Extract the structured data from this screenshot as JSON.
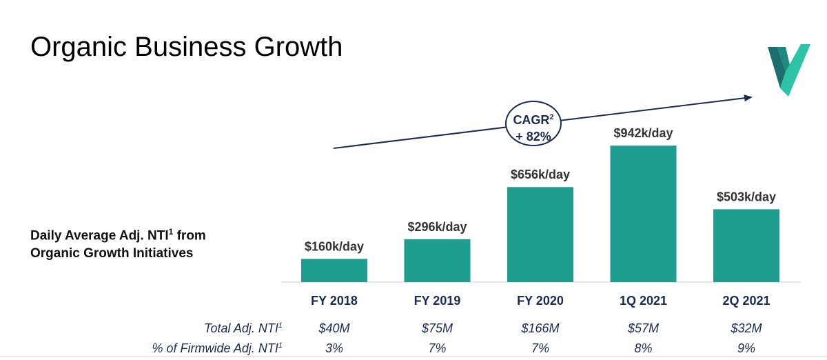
{
  "page": {
    "title": "Organic Business Growth",
    "side_label_line1": "Daily Average Adj. NTI",
    "side_label_sup": "1",
    "side_label_line1_end": " from",
    "side_label_line2": "Organic Growth Initiatives",
    "logo_icon": "checkmark-logo-icon",
    "colors": {
      "bar": "#1f9e8f",
      "navy": "#1a2a52",
      "logo_dark": "#1b6e6e",
      "logo_light": "#2cc3a6"
    }
  },
  "cagr": {
    "label": "CAGR",
    "sup": "2",
    "value": "+ 82%"
  },
  "chart_data": {
    "type": "bar",
    "categories": [
      "FY 2018",
      "FY 2019",
      "FY 2020",
      "1Q 2021",
      "2Q 2021"
    ],
    "values": [
      160,
      296,
      656,
      942,
      503
    ],
    "data_labels": [
      "$160k/day",
      "$296k/day",
      "$656k/day",
      "$942k/day",
      "$503k/day"
    ],
    "ylim": [
      0,
      1000
    ],
    "grid": false
  },
  "table": {
    "rows": [
      {
        "label": "Total Adj. NTI",
        "sup": "1",
        "values": [
          "$40M",
          "$75M",
          "$166M",
          "$57M",
          "$32M"
        ]
      },
      {
        "label": "% of Firmwide Adj. NTI",
        "sup": "1",
        "values": [
          "3%",
          "7%",
          "7%",
          "8%",
          "9%"
        ]
      }
    ]
  }
}
